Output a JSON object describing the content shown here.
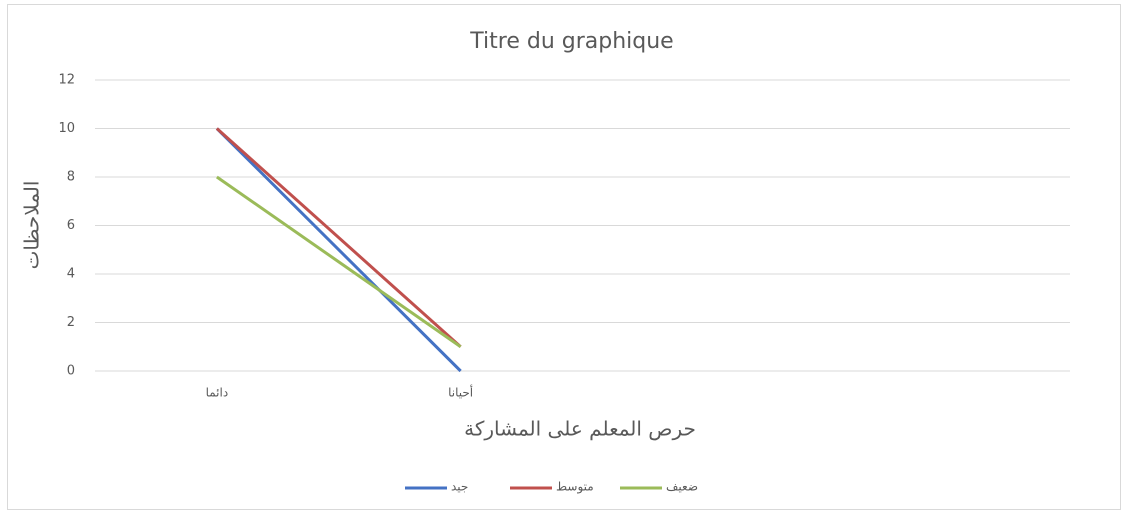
{
  "chart_data": {
    "type": "line",
    "title": "Titre du graphique",
    "x_label": "حرص المعلم على المشاركة",
    "y_label": "الملاحظات",
    "categories": [
      "دائما",
      "أحيانا",
      null,
      null
    ],
    "series": [
      {
        "name": "جيد",
        "color": "#4472c4",
        "values": [
          10,
          0,
          null,
          null
        ]
      },
      {
        "name": "متوسط",
        "color": "#c0504d",
        "values": [
          10,
          1,
          null,
          null
        ]
      },
      {
        "name": "ضعيف",
        "color": "#9bbb59",
        "values": [
          8,
          1,
          null,
          null
        ]
      }
    ],
    "ylim": [
      0,
      12
    ],
    "yticks": [
      0,
      2,
      4,
      6,
      8,
      10,
      12
    ],
    "grid": true,
    "legend": "bottom"
  }
}
